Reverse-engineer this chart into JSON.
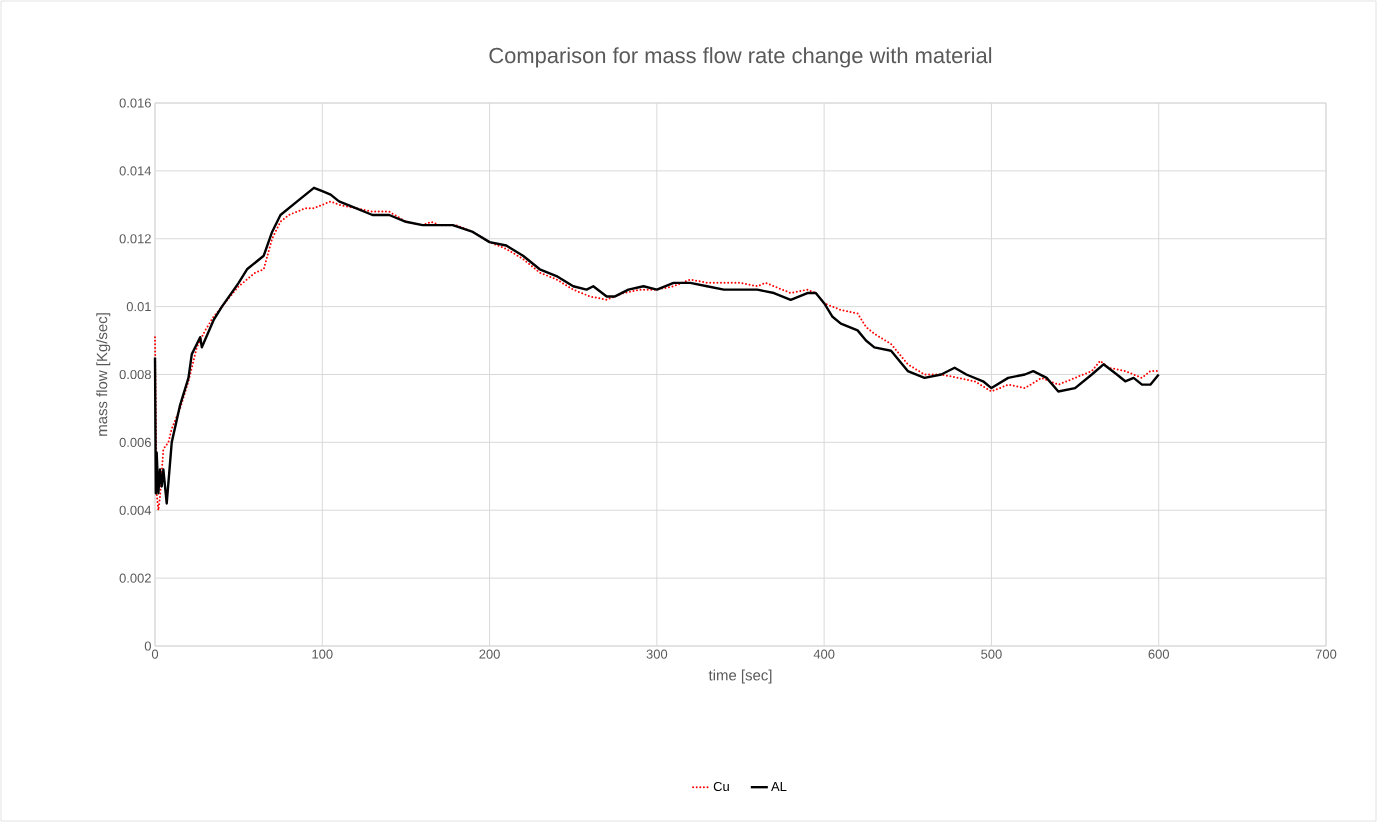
{
  "chart_data": {
    "type": "line",
    "title": "Comparison for mass flow rate change with material",
    "xlabel": "time [sec]",
    "ylabel": "mass flow [Kg/sec]",
    "xlim": [
      0,
      700
    ],
    "ylim": [
      0,
      0.016
    ],
    "xticks": [
      0,
      100,
      200,
      300,
      400,
      500,
      600,
      700
    ],
    "yticks": [
      0,
      0.002,
      0.004,
      0.006,
      0.008,
      0.01,
      0.012,
      0.014,
      0.016
    ],
    "grid": true,
    "legend": "bottom",
    "marker": "none",
    "series": [
      {
        "name": "Cu",
        "color": "#ff0000",
        "line_style": "dotted",
        "x": [
          0,
          1,
          2,
          3,
          5,
          8,
          10,
          15,
          20,
          25,
          30,
          35,
          40,
          50,
          60,
          65,
          70,
          75,
          80,
          85,
          90,
          95,
          100,
          105,
          110,
          120,
          130,
          140,
          150,
          160,
          165,
          170,
          180,
          190,
          200,
          210,
          220,
          230,
          240,
          250,
          260,
          270,
          280,
          290,
          300,
          310,
          320,
          330,
          340,
          350,
          360,
          365,
          370,
          380,
          390,
          395,
          400,
          410,
          420,
          425,
          430,
          440,
          450,
          460,
          470,
          480,
          490,
          500,
          510,
          520,
          530,
          540,
          550,
          560,
          565,
          570,
          580,
          590,
          595,
          600
        ],
        "values": [
          0.0091,
          0.0045,
          0.004,
          0.0044,
          0.0058,
          0.006,
          0.0064,
          0.007,
          0.0078,
          0.0088,
          0.0093,
          0.0097,
          0.01,
          0.0106,
          0.011,
          0.0111,
          0.012,
          0.0125,
          0.0127,
          0.0128,
          0.0129,
          0.0129,
          0.013,
          0.0131,
          0.013,
          0.0129,
          0.0128,
          0.0128,
          0.0125,
          0.0124,
          0.0125,
          0.0124,
          0.0124,
          0.0122,
          0.0119,
          0.0117,
          0.0114,
          0.011,
          0.0108,
          0.0105,
          0.0103,
          0.0102,
          0.0104,
          0.0105,
          0.0105,
          0.0106,
          0.0108,
          0.0107,
          0.0107,
          0.0107,
          0.0106,
          0.0107,
          0.0106,
          0.0104,
          0.0105,
          0.0104,
          0.0101,
          0.0099,
          0.0098,
          0.0094,
          0.0092,
          0.0089,
          0.0083,
          0.008,
          0.008,
          0.0079,
          0.0078,
          0.0075,
          0.0077,
          0.0076,
          0.0079,
          0.0077,
          0.0079,
          0.0081,
          0.0084,
          0.0082,
          0.0081,
          0.0079,
          0.0081,
          0.0081
        ]
      },
      {
        "name": "AL",
        "color": "#000000",
        "line_style": "solid",
        "x": [
          0,
          0.5,
          1,
          2,
          3,
          4,
          5,
          7,
          10,
          15,
          20,
          22,
          25,
          27,
          28,
          35,
          40,
          50,
          55,
          65,
          70,
          75,
          80,
          85,
          90,
          95,
          100,
          105,
          110,
          120,
          130,
          140,
          150,
          160,
          170,
          178,
          190,
          200,
          210,
          220,
          230,
          240,
          250,
          258,
          262,
          270,
          275,
          283,
          292,
          300,
          310,
          320,
          330,
          340,
          350,
          360,
          370,
          380,
          390,
          395,
          400,
          405,
          410,
          420,
          425,
          430,
          440,
          450,
          460,
          470,
          478,
          485,
          495,
          500,
          510,
          520,
          525,
          533,
          540,
          550,
          560,
          567,
          575,
          580,
          585,
          590,
          595,
          600
        ],
        "values": [
          0.0085,
          0.0045,
          0.0057,
          0.0045,
          0.0052,
          0.0047,
          0.0052,
          0.0042,
          0.006,
          0.0071,
          0.0079,
          0.0086,
          0.0089,
          0.0091,
          0.0088,
          0.0096,
          0.01,
          0.0107,
          0.0111,
          0.0115,
          0.0122,
          0.0127,
          0.0129,
          0.0131,
          0.0133,
          0.0135,
          0.0134,
          0.0133,
          0.0131,
          0.0129,
          0.0127,
          0.0127,
          0.0125,
          0.0124,
          0.0124,
          0.0124,
          0.0122,
          0.0119,
          0.0118,
          0.0115,
          0.0111,
          0.0109,
          0.0106,
          0.0105,
          0.0106,
          0.0103,
          0.0103,
          0.0105,
          0.0106,
          0.0105,
          0.0107,
          0.0107,
          0.0106,
          0.0105,
          0.0105,
          0.0105,
          0.0104,
          0.0102,
          0.0104,
          0.0104,
          0.0101,
          0.0097,
          0.0095,
          0.0093,
          0.009,
          0.0088,
          0.0087,
          0.0081,
          0.0079,
          0.008,
          0.0082,
          0.008,
          0.0078,
          0.0076,
          0.0079,
          0.008,
          0.0081,
          0.0079,
          0.0075,
          0.0076,
          0.008,
          0.0083,
          0.008,
          0.0078,
          0.0079,
          0.0077,
          0.0077,
          0.008
        ]
      }
    ]
  }
}
